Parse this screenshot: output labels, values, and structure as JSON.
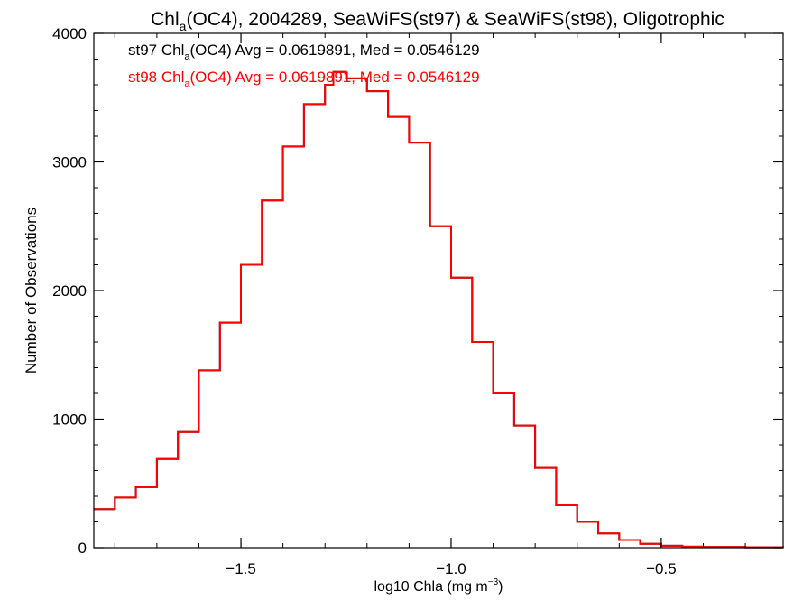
{
  "chart_data": {
    "type": "line",
    "title": {
      "pre": "Chl",
      "sub": "a",
      "post": "(OC4), 2004289, SeaWiFS(st97) & SeaWiFS(st98), Oligotrophic"
    },
    "xlabel": {
      "pre": "log10 Chla (mg m",
      "sup": "−3",
      "post": ")"
    },
    "ylabel": "Number of Observations",
    "xlim": [
      -1.85,
      -0.21
    ],
    "ylim": [
      0,
      4000
    ],
    "x_ticks": [
      -1.5,
      -1.0,
      -0.5
    ],
    "x_tick_labels": [
      "−1.5",
      "−1.0",
      "−0.5"
    ],
    "y_ticks": [
      0,
      1000,
      2000,
      3000,
      4000
    ],
    "y_tick_labels": [
      "0",
      "1000",
      "2000",
      "3000",
      "4000"
    ],
    "grid": false,
    "annotations": [
      {
        "pre": "st97 Chl",
        "sub": "a",
        "post": "(OC4) Avg = 0.0619891, Med = 0.0546129",
        "color": "#000000"
      },
      {
        "pre": "st98 Chl",
        "sub": "a",
        "post": "(OC4) Avg = 0.0619891, Med = 0.0546129",
        "color": "#ff0000"
      }
    ],
    "series": [
      {
        "color": "#000000",
        "x": [
          -1.85,
          -1.8,
          -1.75,
          -1.7,
          -1.65,
          -1.6,
          -1.55,
          -1.5,
          -1.45,
          -1.4,
          -1.35,
          -1.3,
          -1.28,
          -1.25,
          -1.2,
          -1.15,
          -1.1,
          -1.05,
          -1.0,
          -0.95,
          -0.9,
          -0.85,
          -0.8,
          -0.75,
          -0.7,
          -0.65,
          -0.6,
          -0.55,
          -0.5,
          -0.45,
          -0.4,
          -0.3,
          -0.21
        ],
        "y": [
          300,
          390,
          470,
          690,
          900,
          1380,
          1750,
          2200,
          2700,
          3120,
          3450,
          3600,
          3700,
          3650,
          3550,
          3350,
          3150,
          2500,
          2100,
          1600,
          1200,
          950,
          620,
          330,
          200,
          110,
          60,
          30,
          15,
          8,
          5,
          3,
          2
        ]
      },
      {
        "color": "#ff0000",
        "x": [
          -1.85,
          -1.8,
          -1.75,
          -1.7,
          -1.65,
          -1.6,
          -1.55,
          -1.5,
          -1.45,
          -1.4,
          -1.35,
          -1.3,
          -1.28,
          -1.25,
          -1.2,
          -1.15,
          -1.1,
          -1.05,
          -1.0,
          -0.95,
          -0.9,
          -0.85,
          -0.8,
          -0.75,
          -0.7,
          -0.65,
          -0.6,
          -0.55,
          -0.5,
          -0.45,
          -0.4,
          -0.3,
          -0.21
        ],
        "y": [
          300,
          390,
          470,
          690,
          900,
          1380,
          1750,
          2200,
          2700,
          3120,
          3450,
          3600,
          3700,
          3650,
          3550,
          3350,
          3150,
          2500,
          2100,
          1600,
          1200,
          950,
          620,
          330,
          200,
          110,
          60,
          30,
          15,
          8,
          5,
          3,
          2
        ]
      }
    ]
  }
}
